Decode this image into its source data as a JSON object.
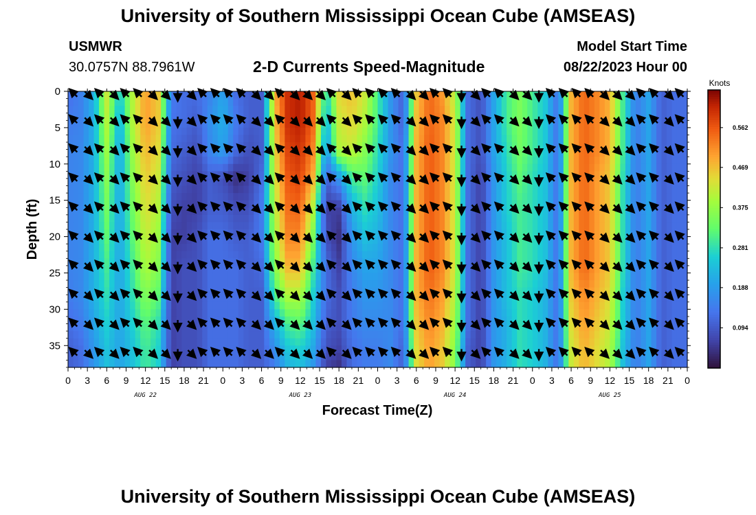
{
  "page": {
    "title_top": "University of Southern Mississippi Ocean Cube (AMSEAS)",
    "title_bottom": "University of Southern Mississippi Ocean Cube (AMSEAS)",
    "station_name": "USMWR",
    "station_coords": "30.0757N  88.7961W",
    "plot_title": "2-D Currents Speed-Magnitude",
    "model_start_label": "Model Start Time",
    "model_start_value": "08/22/2023 Hour 00"
  },
  "chart_data": {
    "type": "heatmap",
    "title": "2-D Currents Speed-Magnitude",
    "xlabel": "Forecast Time(Z)",
    "ylabel": "Depth (ft)",
    "colorbar_label": "Knots",
    "colorbar_ticks": [
      0.094,
      0.188,
      0.281,
      0.375,
      0.469,
      0.562
    ],
    "colorbar_tick_labels": [
      "0.094",
      "0.188",
      "0.281",
      "0.375",
      "0.469",
      "0.562"
    ],
    "colorbar_range": [
      0.0,
      0.65
    ],
    "xlim": [
      0,
      96
    ],
    "ylim": [
      0,
      38
    ],
    "x_tick_hours": [
      0,
      3,
      6,
      9,
      12,
      15,
      18,
      21,
      24,
      27,
      30,
      33,
      36,
      39,
      42,
      45,
      48,
      51,
      54,
      57,
      60,
      63,
      66,
      69,
      72,
      75,
      78,
      81,
      84,
      87,
      90,
      93,
      96
    ],
    "x_tick_labels": [
      "0",
      "3",
      "6",
      "9",
      "12",
      "15",
      "18",
      "21",
      "0",
      "3",
      "6",
      "9",
      "12",
      "15",
      "18",
      "21",
      "0",
      "3",
      "6",
      "9",
      "12",
      "15",
      "18",
      "21",
      "0",
      "3",
      "6",
      "9",
      "12",
      "15",
      "18",
      "21",
      "0"
    ],
    "date_labels": [
      {
        "hour": 12,
        "label": "AUG 22"
      },
      {
        "hour": 36,
        "label": "AUG 23"
      },
      {
        "hour": 60,
        "label": "AUG 24"
      },
      {
        "hour": 84,
        "label": "AUG 25"
      }
    ],
    "y_ticks": [
      0,
      5,
      10,
      15,
      20,
      25,
      30,
      35
    ],
    "y_tick_labels": [
      "0",
      "5",
      "10",
      "15",
      "20",
      "25",
      "30",
      "35"
    ],
    "depth_levels": [
      0,
      4,
      8,
      12,
      16,
      20,
      24,
      28,
      32,
      36,
      38
    ],
    "speed_hours": [
      0,
      2,
      4,
      6,
      8,
      10,
      12,
      14,
      16,
      18,
      20,
      22,
      24,
      26,
      28,
      30,
      32,
      34,
      36,
      38,
      40,
      42,
      44,
      46,
      48,
      50,
      52,
      54,
      56,
      58,
      60,
      62,
      64,
      66,
      68,
      70,
      72,
      74,
      76,
      78,
      80,
      82,
      84,
      86,
      88,
      90,
      92,
      94,
      96
    ],
    "speed": [
      [
        0.12,
        0.15,
        0.22,
        0.42,
        0.25,
        0.4,
        0.5,
        0.46,
        0.14,
        0.12,
        0.12,
        0.15,
        0.2,
        0.12,
        0.1,
        0.1,
        0.48,
        0.6,
        0.62,
        0.55,
        0.26,
        0.45,
        0.47,
        0.42,
        0.3,
        0.18,
        0.1,
        0.46,
        0.55,
        0.5,
        0.4,
        0.12,
        0.08,
        0.2,
        0.3,
        0.35,
        0.3,
        0.25,
        0.12,
        0.48,
        0.55,
        0.52,
        0.48,
        0.3,
        0.14,
        0.2,
        0.1,
        0.12,
        0.12
      ],
      [
        0.14,
        0.15,
        0.22,
        0.4,
        0.22,
        0.4,
        0.5,
        0.46,
        0.13,
        0.12,
        0.1,
        0.17,
        0.22,
        0.14,
        0.1,
        0.1,
        0.46,
        0.6,
        0.62,
        0.55,
        0.22,
        0.42,
        0.45,
        0.4,
        0.3,
        0.18,
        0.1,
        0.47,
        0.55,
        0.52,
        0.42,
        0.12,
        0.08,
        0.2,
        0.3,
        0.35,
        0.3,
        0.25,
        0.12,
        0.48,
        0.55,
        0.52,
        0.48,
        0.3,
        0.14,
        0.2,
        0.1,
        0.12,
        0.12
      ],
      [
        0.15,
        0.16,
        0.22,
        0.38,
        0.2,
        0.38,
        0.48,
        0.44,
        0.12,
        0.1,
        0.08,
        0.16,
        0.2,
        0.12,
        0.08,
        0.1,
        0.44,
        0.58,
        0.6,
        0.52,
        0.18,
        0.4,
        0.42,
        0.36,
        0.28,
        0.18,
        0.12,
        0.48,
        0.56,
        0.52,
        0.42,
        0.12,
        0.08,
        0.2,
        0.28,
        0.34,
        0.3,
        0.25,
        0.12,
        0.48,
        0.55,
        0.52,
        0.48,
        0.3,
        0.14,
        0.2,
        0.1,
        0.12,
        0.12
      ],
      [
        0.15,
        0.16,
        0.22,
        0.36,
        0.2,
        0.36,
        0.46,
        0.42,
        0.1,
        0.08,
        0.06,
        0.1,
        0.08,
        0.04,
        0.06,
        0.12,
        0.42,
        0.56,
        0.58,
        0.48,
        0.1,
        0.18,
        0.3,
        0.32,
        0.26,
        0.16,
        0.12,
        0.48,
        0.56,
        0.52,
        0.42,
        0.12,
        0.06,
        0.18,
        0.26,
        0.32,
        0.28,
        0.24,
        0.12,
        0.48,
        0.55,
        0.5,
        0.46,
        0.28,
        0.14,
        0.2,
        0.1,
        0.12,
        0.12
      ],
      [
        0.15,
        0.16,
        0.22,
        0.34,
        0.2,
        0.34,
        0.44,
        0.4,
        0.08,
        0.06,
        0.06,
        0.1,
        0.1,
        0.08,
        0.08,
        0.14,
        0.4,
        0.54,
        0.55,
        0.4,
        0.06,
        0.06,
        0.22,
        0.28,
        0.24,
        0.16,
        0.12,
        0.48,
        0.56,
        0.52,
        0.42,
        0.12,
        0.06,
        0.18,
        0.26,
        0.3,
        0.28,
        0.24,
        0.12,
        0.48,
        0.55,
        0.5,
        0.46,
        0.28,
        0.14,
        0.2,
        0.1,
        0.12,
        0.12
      ],
      [
        0.15,
        0.16,
        0.22,
        0.32,
        0.2,
        0.32,
        0.42,
        0.38,
        0.06,
        0.06,
        0.08,
        0.12,
        0.12,
        0.1,
        0.1,
        0.14,
        0.38,
        0.52,
        0.52,
        0.35,
        0.08,
        0.04,
        0.18,
        0.24,
        0.22,
        0.16,
        0.12,
        0.48,
        0.56,
        0.52,
        0.42,
        0.12,
        0.06,
        0.18,
        0.24,
        0.3,
        0.28,
        0.24,
        0.12,
        0.48,
        0.55,
        0.5,
        0.46,
        0.28,
        0.14,
        0.2,
        0.1,
        0.12,
        0.12
      ],
      [
        0.15,
        0.16,
        0.22,
        0.3,
        0.2,
        0.3,
        0.4,
        0.36,
        0.06,
        0.08,
        0.08,
        0.12,
        0.12,
        0.12,
        0.1,
        0.12,
        0.36,
        0.48,
        0.48,
        0.3,
        0.12,
        0.06,
        0.16,
        0.2,
        0.2,
        0.16,
        0.12,
        0.48,
        0.56,
        0.52,
        0.42,
        0.12,
        0.06,
        0.18,
        0.24,
        0.3,
        0.28,
        0.24,
        0.12,
        0.48,
        0.55,
        0.5,
        0.46,
        0.28,
        0.14,
        0.2,
        0.1,
        0.12,
        0.12
      ],
      [
        0.14,
        0.16,
        0.22,
        0.28,
        0.2,
        0.28,
        0.36,
        0.32,
        0.06,
        0.08,
        0.08,
        0.12,
        0.12,
        0.12,
        0.1,
        0.1,
        0.3,
        0.4,
        0.4,
        0.26,
        0.12,
        0.08,
        0.14,
        0.18,
        0.18,
        0.16,
        0.12,
        0.48,
        0.54,
        0.5,
        0.4,
        0.12,
        0.06,
        0.18,
        0.24,
        0.28,
        0.26,
        0.22,
        0.12,
        0.46,
        0.52,
        0.48,
        0.44,
        0.26,
        0.14,
        0.2,
        0.1,
        0.12,
        0.12
      ],
      [
        0.12,
        0.14,
        0.2,
        0.26,
        0.2,
        0.26,
        0.32,
        0.28,
        0.06,
        0.08,
        0.08,
        0.12,
        0.12,
        0.12,
        0.1,
        0.1,
        0.22,
        0.3,
        0.32,
        0.24,
        0.1,
        0.08,
        0.14,
        0.16,
        0.16,
        0.16,
        0.12,
        0.46,
        0.52,
        0.48,
        0.38,
        0.12,
        0.06,
        0.18,
        0.22,
        0.28,
        0.26,
        0.22,
        0.12,
        0.44,
        0.5,
        0.46,
        0.42,
        0.26,
        0.14,
        0.2,
        0.1,
        0.12,
        0.12
      ],
      [
        0.1,
        0.12,
        0.18,
        0.24,
        0.2,
        0.24,
        0.3,
        0.26,
        0.06,
        0.08,
        0.08,
        0.12,
        0.12,
        0.12,
        0.1,
        0.1,
        0.16,
        0.24,
        0.26,
        0.2,
        0.08,
        0.06,
        0.12,
        0.14,
        0.14,
        0.16,
        0.1,
        0.44,
        0.5,
        0.46,
        0.36,
        0.1,
        0.06,
        0.18,
        0.22,
        0.28,
        0.26,
        0.22,
        0.12,
        0.42,
        0.48,
        0.44,
        0.4,
        0.24,
        0.14,
        0.2,
        0.1,
        0.12,
        0.12
      ],
      [
        0.1,
        0.12,
        0.18,
        0.24,
        0.2,
        0.24,
        0.3,
        0.26,
        0.06,
        0.08,
        0.08,
        0.12,
        0.12,
        0.12,
        0.1,
        0.1,
        0.14,
        0.22,
        0.24,
        0.18,
        0.06,
        0.04,
        0.12,
        0.14,
        0.14,
        0.16,
        0.1,
        0.44,
        0.5,
        0.46,
        0.36,
        0.1,
        0.06,
        0.18,
        0.22,
        0.28,
        0.26,
        0.22,
        0.12,
        0.42,
        0.48,
        0.44,
        0.4,
        0.24,
        0.14,
        0.2,
        0.1,
        0.12,
        0.12
      ]
    ],
    "vector_hours": [
      1,
      3,
      5,
      7,
      9,
      11,
      13,
      15,
      17,
      19,
      21,
      23,
      25,
      27,
      29,
      31,
      33,
      35,
      37,
      39,
      41,
      43,
      45,
      47,
      49,
      51,
      53,
      55,
      57,
      59,
      61,
      63,
      65,
      67,
      69,
      71,
      73,
      75,
      77,
      79,
      81,
      83,
      85,
      87,
      89,
      91,
      93,
      95
    ],
    "vector_depths": [
      0,
      4,
      8,
      12,
      16,
      20,
      24,
      28,
      32,
      36
    ],
    "vector_direction_deg": [
      315,
      135,
      315,
      135,
      315,
      315,
      135,
      135,
      180,
      135,
      315,
      315,
      315,
      315,
      135,
      135,
      315,
      135,
      135,
      135,
      315,
      135,
      315,
      315,
      315,
      315,
      135,
      135,
      315,
      315,
      180,
      135,
      315,
      315,
      135,
      135,
      180,
      315,
      315,
      315,
      315,
      135,
      135,
      135,
      315,
      315,
      135,
      315
    ],
    "vector_direction_note": "degrees clockwise from north (compass), one per time column, all depths share the column direction"
  }
}
